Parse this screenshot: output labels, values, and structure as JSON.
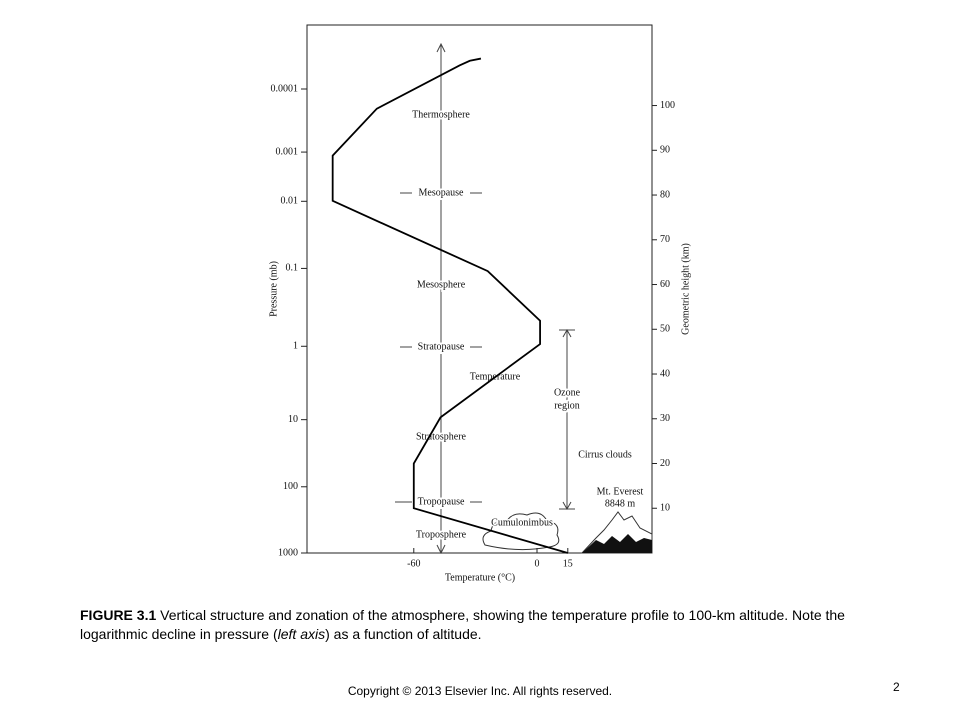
{
  "chart_data": {
    "type": "line",
    "x_label": "Temperature (°C)",
    "y_label": "Geometric height (km)",
    "pressure_label": "Pressure (mb)",
    "xlim": [
      -112,
      56
    ],
    "xticks": [
      -60,
      0,
      15
    ],
    "ylim": [
      0,
      118
    ],
    "yticks": [
      10,
      20,
      30,
      40,
      50,
      60,
      70,
      80,
      90,
      100
    ],
    "pressure_ticks": [
      {
        "value": 1000,
        "label": "1000",
        "height_km": 0
      },
      {
        "value": 100,
        "label": "100",
        "height_km": 14.8
      },
      {
        "value": 10,
        "label": "10",
        "height_km": 29.8
      },
      {
        "value": 1,
        "label": "1",
        "height_km": 46.2
      },
      {
        "value": 0.1,
        "label": "0.1",
        "height_km": 63.6
      },
      {
        "value": 0.01,
        "label": "0.01",
        "height_km": 78.6
      },
      {
        "value": 0.001,
        "label": "0.001",
        "height_km": 89.6
      },
      {
        "value": 0.0001,
        "label": "0.0001",
        "height_km": 103.7
      }
    ],
    "series": [
      {
        "name": "Temperature",
        "color": "#000000",
        "x": [
          15,
          -60,
          -60,
          -47,
          1.5,
          1.5,
          -24,
          -99.5,
          -99.5,
          -78,
          -37.6,
          -32.7,
          -27.3
        ],
        "values": [
          0,
          10,
          20,
          30.3,
          46.7,
          51.9,
          63,
          78.7,
          88.8,
          99.3,
          109,
          110,
          110.5
        ]
      }
    ],
    "annotations": [
      "Thermosphere",
      "Mesopause",
      "Mesosphere",
      "Stratopause",
      "Temperature",
      "Stratosphere",
      "Tropopause",
      "Troposphere",
      "Cumulonimbus",
      "Ozone",
      "region",
      "Cirrus clouds",
      "Mt. Everest",
      "8848 m"
    ]
  },
  "caption": {
    "label": "FIGURE 3.1",
    "text_1": " Vertical structure and zonation of the atmosphere, showing the temperature profile to 100-km altitude. Note the logarithmic decline in pressure (",
    "italic": "left axis",
    "text_2": ") as a function of altitude."
  },
  "footer": {
    "copyright": "Copyright © 2013 Elsevier Inc. All rights reserved.",
    "page": "2"
  }
}
